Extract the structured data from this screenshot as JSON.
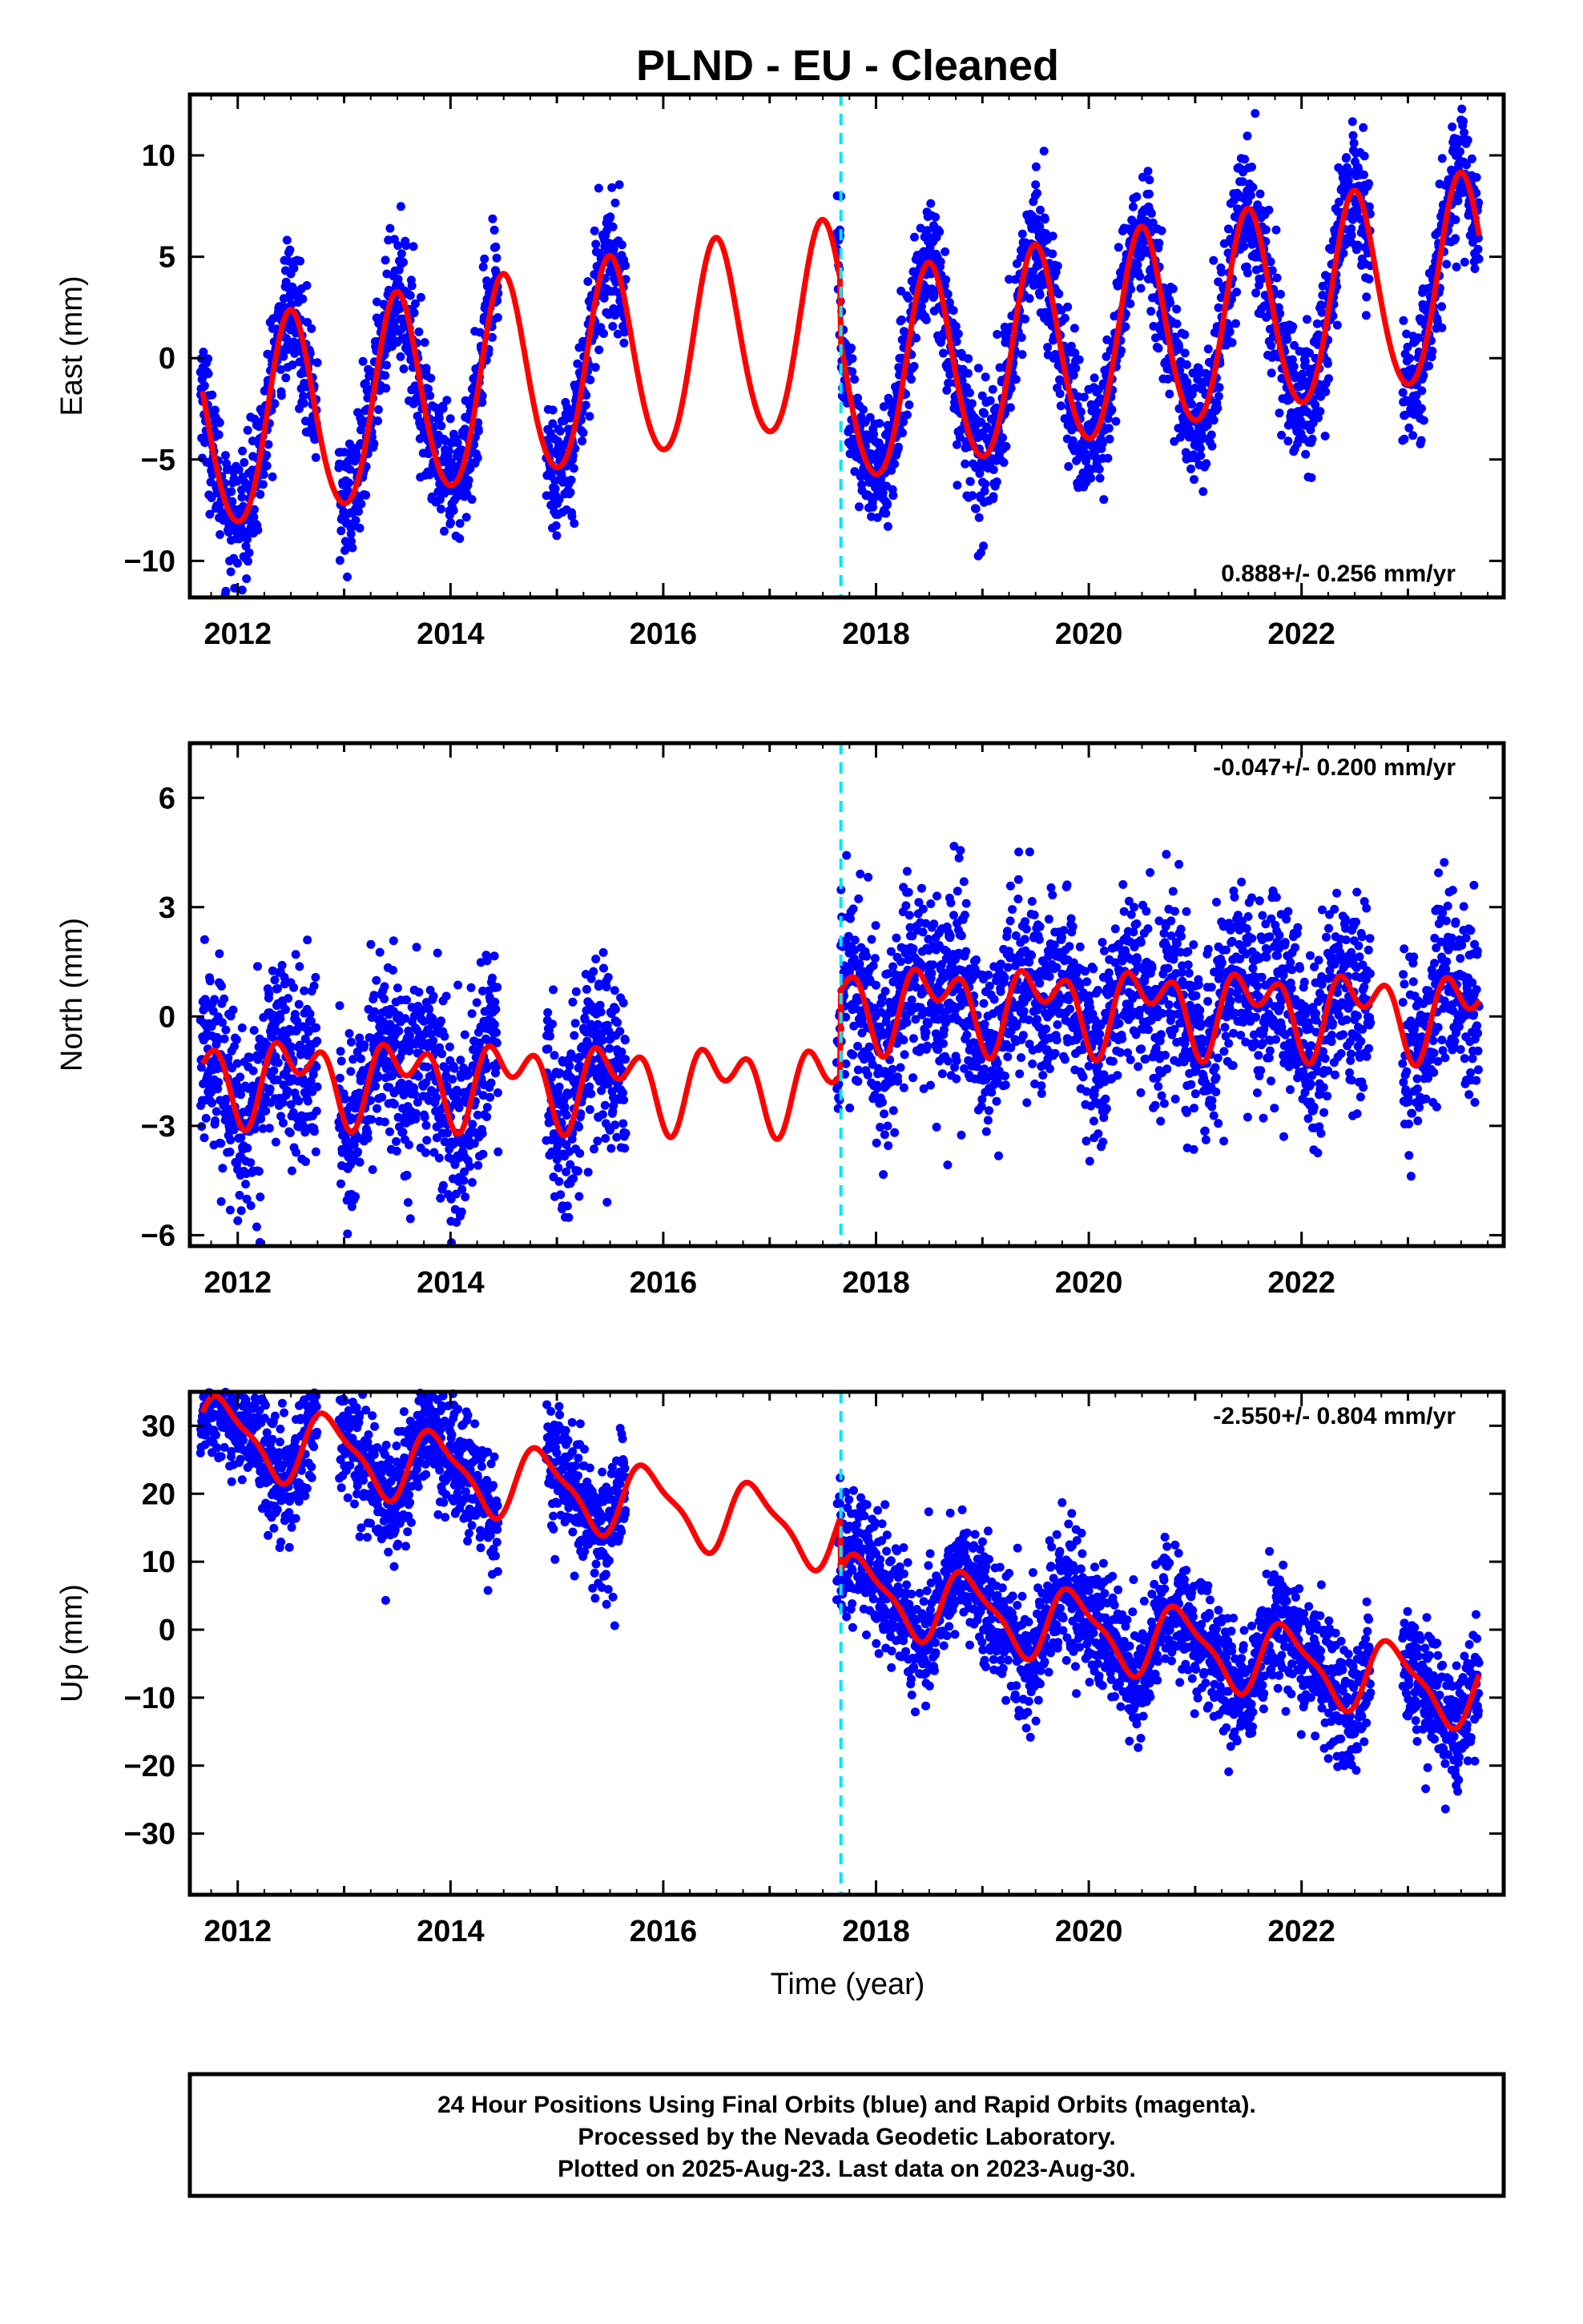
{
  "title": "PLND  - EU - Cleaned",
  "xlabel": "Time (year)",
  "footer": {
    "line1": "24 Hour Positions Using Final Orbits (blue) and Rapid Orbits (magenta).",
    "line2": "Processed by the Nevada Geodetic Laboratory.",
    "line3": "Plotted on 2025-Aug-23. Last data on 2023-Aug-30."
  },
  "colors": {
    "data": "#0000ff",
    "model": "#ff0000",
    "break_line": "#00e5ff",
    "axis": "#000000"
  },
  "chart_data": [
    {
      "type": "scatter",
      "component": "east",
      "ylabel": "East (mm)",
      "rate": "0.888+/- 0.256 mm/yr",
      "rate_position": "bottom-right",
      "xlim": [
        2011.55,
        2023.9
      ],
      "ylim": [
        -11.8,
        13
      ],
      "xticks": [
        2012,
        2014,
        2016,
        2018,
        2020,
        2022
      ],
      "yticks": [
        -10,
        -5,
        0,
        5,
        10
      ],
      "ytick_labels": [
        "−10",
        "−5",
        "0",
        "5",
        "10"
      ],
      "break_x": 2017.67,
      "model": {
        "trend": 0.888,
        "offset": 1.6,
        "break_jump": -3.0,
        "annual_amp": 5.0,
        "annual_phase": 0.25,
        "semi_amp": 0.4,
        "semi_phase": 0.35
      },
      "noise": 1.6,
      "data_segments": [
        [
          2011.65,
          2012.75
        ],
        [
          2012.95,
          2014.45
        ],
        [
          2014.9,
          2015.65
        ],
        [
          2017.63,
          2022.65
        ],
        [
          2022.95,
          2023.67
        ]
      ]
    },
    {
      "type": "scatter",
      "component": "north",
      "ylabel": "North (mm)",
      "rate": "-0.047+/- 0.200 mm/yr",
      "rate_position": "top-right",
      "xlim": [
        2011.55,
        2023.9
      ],
      "ylim": [
        -6.3,
        7.5
      ],
      "xticks": [
        2012,
        2014,
        2016,
        2018,
        2020,
        2022
      ],
      "yticks": [
        -6,
        -3,
        0,
        3,
        6
      ],
      "ytick_labels": [
        "−6",
        "−3",
        "0",
        "3",
        "6"
      ],
      "break_x": 2017.67,
      "model": {
        "trend": -0.047,
        "offset": -1.9,
        "break_jump": 2.3,
        "annual_amp": 0.8,
        "annual_phase": 0.3,
        "semi_amp": 0.7,
        "semi_phase": 0.2
      },
      "noise": 1.3,
      "data_segments": [
        [
          2011.65,
          2012.75
        ],
        [
          2012.95,
          2014.45
        ],
        [
          2014.9,
          2015.65
        ],
        [
          2017.63,
          2022.65
        ],
        [
          2022.95,
          2023.67
        ]
      ]
    },
    {
      "type": "scatter",
      "component": "up",
      "ylabel": "Up (mm)",
      "rate": "-2.550+/- 0.804 mm/yr",
      "rate_position": "top-right",
      "xlim": [
        2011.55,
        2023.9
      ],
      "ylim": [
        -39,
        35
      ],
      "xticks": [
        2012,
        2014,
        2016,
        2018,
        2020,
        2022
      ],
      "yticks": [
        -30,
        -20,
        -10,
        0,
        10,
        20,
        30
      ],
      "ytick_labels": [
        "−30",
        "−20",
        "−10",
        "0",
        "10",
        "20",
        "30"
      ],
      "break_x": 2017.67,
      "model": {
        "trend": -2.55,
        "offset": 14.0,
        "break_jump": -8.0,
        "annual_amp": 5.0,
        "annual_phase": 0.62,
        "semi_amp": 1.5,
        "semi_phase": 0.1
      },
      "noise": 4.5,
      "data_segments": [
        [
          2011.65,
          2012.75
        ],
        [
          2012.95,
          2014.45
        ],
        [
          2014.9,
          2015.65
        ],
        [
          2017.63,
          2022.65
        ],
        [
          2022.95,
          2023.67
        ]
      ]
    }
  ]
}
